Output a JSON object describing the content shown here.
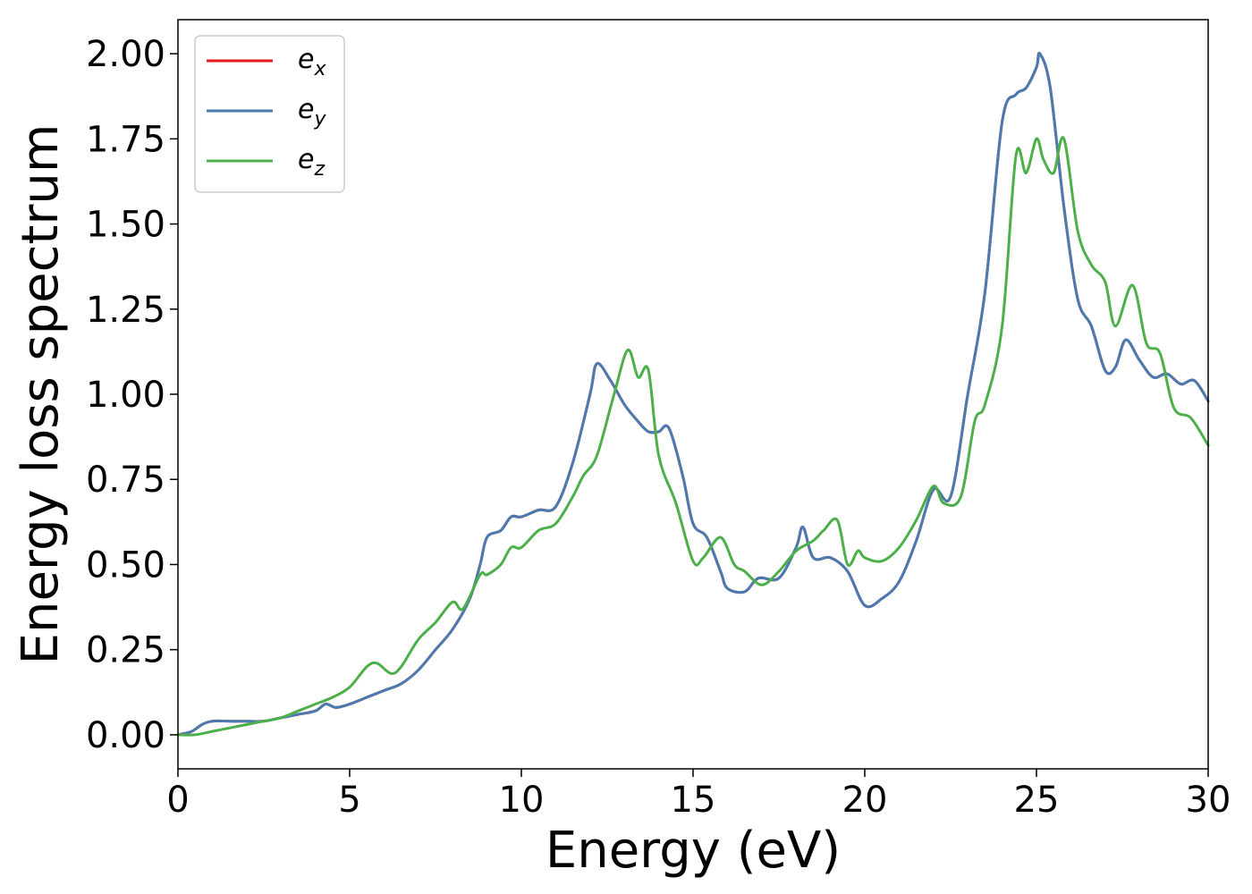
{
  "chart_data": {
    "type": "line",
    "title": "",
    "xlabel": "Energy (eV)",
    "ylabel": "Energy loss spectrum",
    "xlim": [
      0,
      30
    ],
    "ylim": [
      -0.1,
      2.1
    ],
    "xticks": [
      "0",
      "5",
      "10",
      "15",
      "20",
      "25",
      "30"
    ],
    "yticks": [
      "0.00",
      "0.25",
      "0.50",
      "0.75",
      "1.00",
      "1.25",
      "1.50",
      "1.75",
      "2.00"
    ],
    "grid": false,
    "legend_position": "top-left",
    "colors": {
      "ex": "#e41a1c",
      "ey": "#4a7bb0",
      "ez": "#4daf4a"
    },
    "series": [
      {
        "name": "e_x",
        "label_base": "e",
        "label_sub": "x",
        "color": "#e41a1c",
        "x": [
          0,
          0.4,
          0.7,
          1.0,
          1.5,
          2.0,
          2.5,
          3.0,
          3.5,
          4.0,
          4.3,
          4.6,
          5.0,
          5.5,
          6.0,
          6.5,
          7.0,
          7.5,
          8.0,
          8.5,
          8.8,
          9.0,
          9.4,
          9.7,
          10.0,
          10.5,
          11.0,
          11.5,
          12.0,
          12.2,
          12.6,
          13.0,
          13.4,
          13.7,
          14.0,
          14.3,
          14.7,
          15.0,
          15.4,
          15.8,
          16.0,
          16.5,
          16.9,
          17.5,
          18.0,
          18.2,
          18.5,
          19.0,
          19.5,
          20.0,
          20.5,
          21.0,
          21.5,
          22.0,
          22.5,
          23.0,
          23.5,
          24.0,
          24.4,
          24.7,
          25.0,
          25.1,
          25.4,
          25.8,
          26.2,
          26.6,
          27.0,
          27.3,
          27.6,
          28.0,
          28.4,
          28.8,
          29.2,
          29.6,
          30.0
        ],
        "y": [
          0.0,
          0.01,
          0.03,
          0.04,
          0.04,
          0.04,
          0.04,
          0.05,
          0.06,
          0.07,
          0.09,
          0.08,
          0.09,
          0.11,
          0.13,
          0.15,
          0.19,
          0.25,
          0.31,
          0.4,
          0.5,
          0.58,
          0.6,
          0.64,
          0.64,
          0.66,
          0.67,
          0.8,
          1.0,
          1.09,
          1.04,
          0.97,
          0.92,
          0.89,
          0.89,
          0.9,
          0.76,
          0.62,
          0.58,
          0.48,
          0.43,
          0.42,
          0.46,
          0.46,
          0.55,
          0.61,
          0.52,
          0.52,
          0.48,
          0.38,
          0.4,
          0.45,
          0.57,
          0.72,
          0.7,
          1.0,
          1.3,
          1.8,
          1.88,
          1.9,
          1.96,
          2.0,
          1.9,
          1.55,
          1.28,
          1.2,
          1.07,
          1.08,
          1.16,
          1.1,
          1.05,
          1.06,
          1.03,
          1.04,
          0.98
        ]
      },
      {
        "name": "e_y",
        "label_base": "e",
        "label_sub": "y",
        "color": "#4a7bb0",
        "x": [
          0,
          0.4,
          0.7,
          1.0,
          1.5,
          2.0,
          2.5,
          3.0,
          3.5,
          4.0,
          4.3,
          4.6,
          5.0,
          5.5,
          6.0,
          6.5,
          7.0,
          7.5,
          8.0,
          8.5,
          8.8,
          9.0,
          9.4,
          9.7,
          10.0,
          10.5,
          11.0,
          11.5,
          12.0,
          12.2,
          12.6,
          13.0,
          13.4,
          13.7,
          14.0,
          14.3,
          14.7,
          15.0,
          15.4,
          15.8,
          16.0,
          16.5,
          16.9,
          17.5,
          18.0,
          18.2,
          18.5,
          19.0,
          19.5,
          20.0,
          20.5,
          21.0,
          21.5,
          22.0,
          22.5,
          23.0,
          23.5,
          24.0,
          24.4,
          24.7,
          25.0,
          25.1,
          25.4,
          25.8,
          26.2,
          26.6,
          27.0,
          27.3,
          27.6,
          28.0,
          28.4,
          28.8,
          29.2,
          29.6,
          30.0
        ],
        "y": [
          0.0,
          0.01,
          0.03,
          0.04,
          0.04,
          0.04,
          0.04,
          0.05,
          0.06,
          0.07,
          0.09,
          0.08,
          0.09,
          0.11,
          0.13,
          0.15,
          0.19,
          0.25,
          0.31,
          0.4,
          0.5,
          0.58,
          0.6,
          0.64,
          0.64,
          0.66,
          0.67,
          0.8,
          1.0,
          1.09,
          1.04,
          0.97,
          0.92,
          0.89,
          0.89,
          0.9,
          0.76,
          0.62,
          0.58,
          0.48,
          0.43,
          0.42,
          0.46,
          0.46,
          0.55,
          0.61,
          0.52,
          0.52,
          0.48,
          0.38,
          0.4,
          0.45,
          0.57,
          0.72,
          0.7,
          1.0,
          1.3,
          1.8,
          1.88,
          1.9,
          1.96,
          2.0,
          1.9,
          1.55,
          1.28,
          1.2,
          1.07,
          1.08,
          1.16,
          1.1,
          1.05,
          1.06,
          1.03,
          1.04,
          0.98
        ]
      },
      {
        "name": "e_z",
        "label_base": "e",
        "label_sub": "z",
        "color": "#4daf4a",
        "x": [
          0,
          0.5,
          1.0,
          1.5,
          2.0,
          2.5,
          3.0,
          3.5,
          4.0,
          4.5,
          5.0,
          5.5,
          5.8,
          6.2,
          6.5,
          7.0,
          7.5,
          8.0,
          8.3,
          8.8,
          9.0,
          9.4,
          9.7,
          10.0,
          10.5,
          11.0,
          11.5,
          11.8,
          12.2,
          12.7,
          13.1,
          13.4,
          13.7,
          14.0,
          14.5,
          15.0,
          15.3,
          15.8,
          16.2,
          16.5,
          17.0,
          17.5,
          18.0,
          18.5,
          18.8,
          19.2,
          19.5,
          19.8,
          20.0,
          20.5,
          21.0,
          21.5,
          22.0,
          22.3,
          22.8,
          23.2,
          23.5,
          24.0,
          24.4,
          24.7,
          25.0,
          25.2,
          25.5,
          25.8,
          26.2,
          26.6,
          27.0,
          27.3,
          27.8,
          28.2,
          28.6,
          29.0,
          29.5,
          30.0
        ],
        "y": [
          0.0,
          0.0,
          0.01,
          0.02,
          0.03,
          0.04,
          0.05,
          0.07,
          0.09,
          0.11,
          0.14,
          0.2,
          0.21,
          0.18,
          0.2,
          0.28,
          0.33,
          0.39,
          0.37,
          0.47,
          0.47,
          0.5,
          0.55,
          0.55,
          0.6,
          0.62,
          0.7,
          0.76,
          0.82,
          1.0,
          1.13,
          1.05,
          1.07,
          0.82,
          0.68,
          0.51,
          0.52,
          0.58,
          0.5,
          0.48,
          0.44,
          0.48,
          0.54,
          0.57,
          0.6,
          0.63,
          0.5,
          0.54,
          0.52,
          0.51,
          0.55,
          0.63,
          0.73,
          0.68,
          0.7,
          0.92,
          0.97,
          1.2,
          1.7,
          1.65,
          1.75,
          1.69,
          1.65,
          1.75,
          1.48,
          1.38,
          1.33,
          1.2,
          1.32,
          1.15,
          1.12,
          0.96,
          0.93,
          0.85
        ]
      }
    ]
  }
}
